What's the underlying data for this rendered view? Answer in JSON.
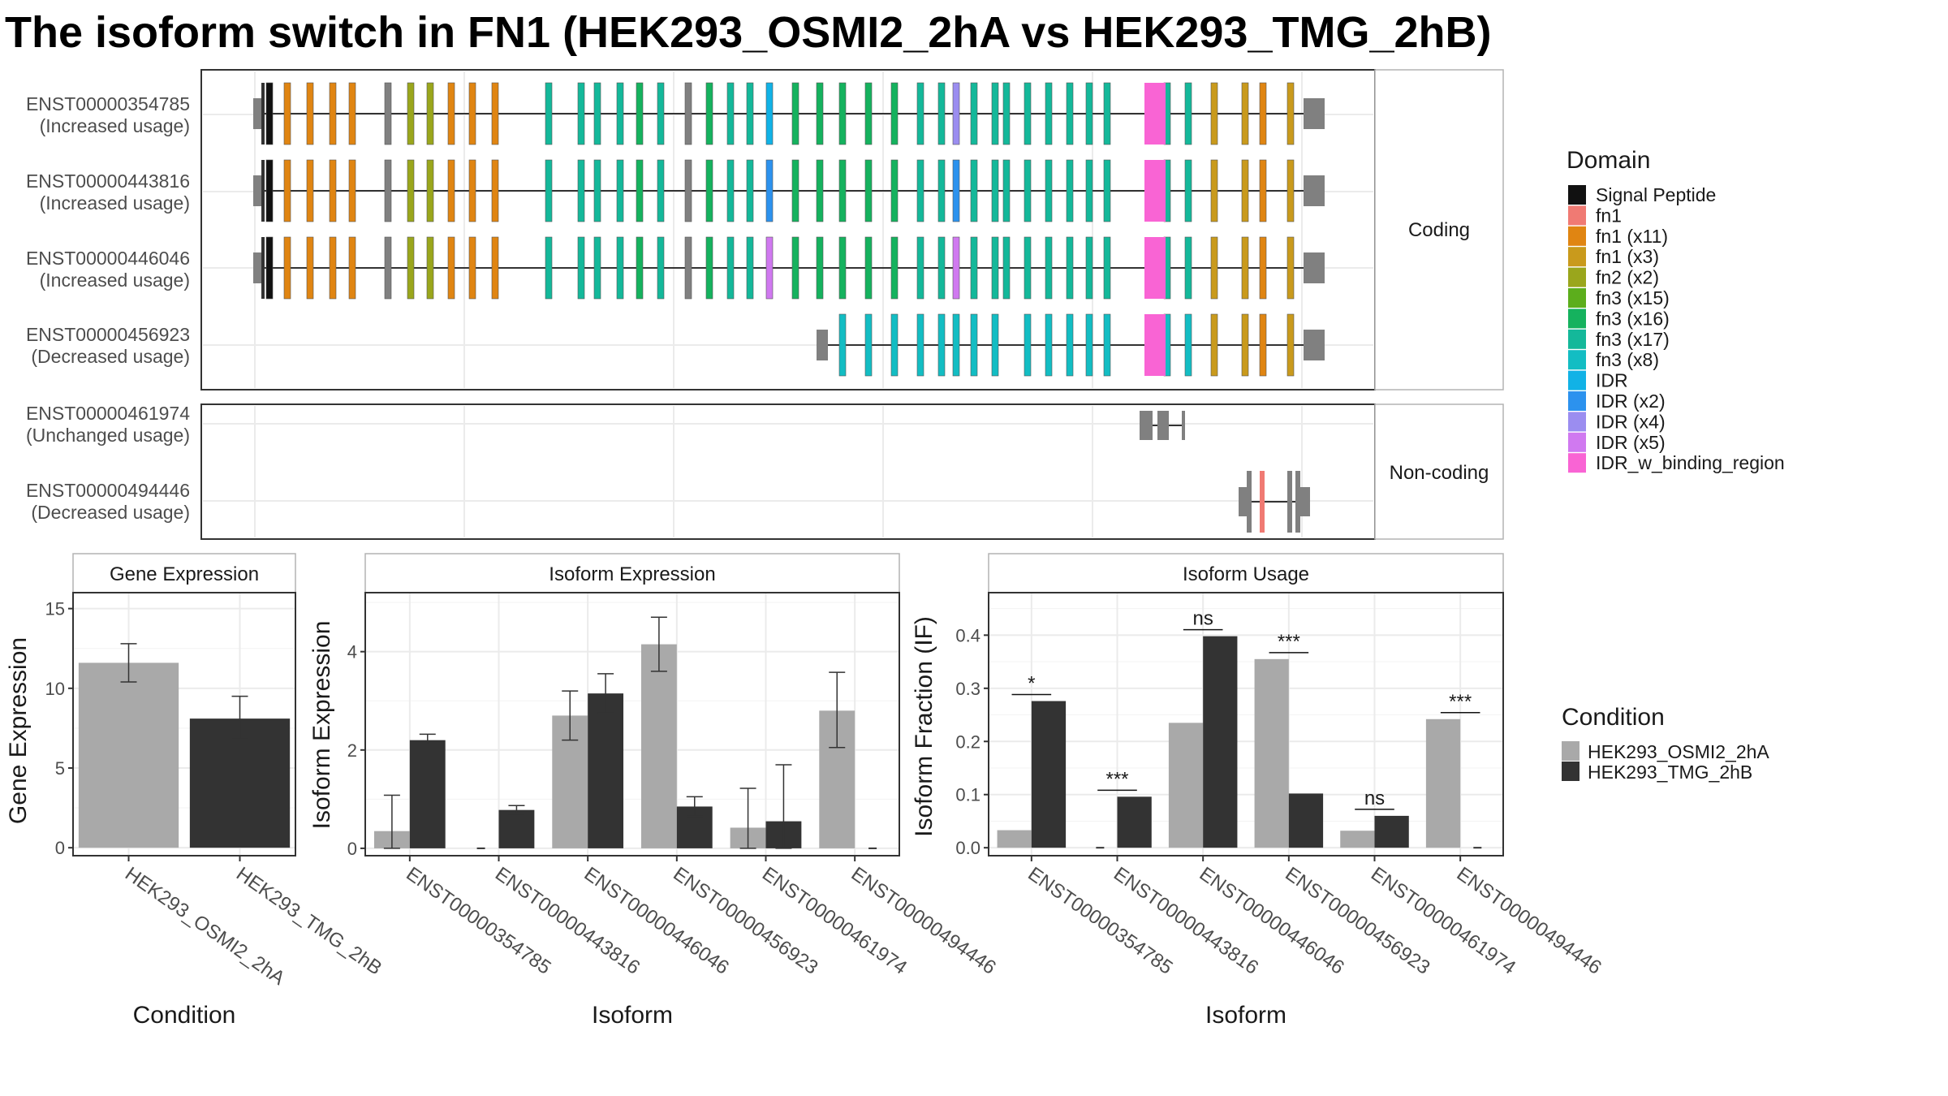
{
  "title": "The isoform switch in FN1 (HEK293_OSMI2_2hA vs HEK293_TMG_2hB)",
  "colors": {
    "condA": "#a9a9a9",
    "condB": "#333333",
    "unannotated": "#808080"
  },
  "domain_legend": {
    "title": "Domain",
    "items": [
      {
        "label": "Signal Peptide",
        "color": "#111111"
      },
      {
        "label": "fn1",
        "color": "#f07a73"
      },
      {
        "label": "fn1 (x11)",
        "color": "#e08512"
      },
      {
        "label": "fn1 (x3)",
        "color": "#c99a1c"
      },
      {
        "label": "fn2 (x2)",
        "color": "#9aa61c"
      },
      {
        "label": "fn3 (x15)",
        "color": "#5cae1c"
      },
      {
        "label": "fn3 (x16)",
        "color": "#15b25e"
      },
      {
        "label": "fn3 (x17)",
        "color": "#14b89a"
      },
      {
        "label": "fn3 (x8)",
        "color": "#13bdc3"
      },
      {
        "label": "IDR",
        "color": "#11b2e6"
      },
      {
        "label": "IDR (x2)",
        "color": "#2c92ee"
      },
      {
        "label": "IDR (x4)",
        "color": "#9b8df0"
      },
      {
        "label": "IDR (x5)",
        "color": "#d079f0"
      },
      {
        "label": "IDR_w_binding_region",
        "color": "#f964d4"
      }
    ]
  },
  "condition_legend": {
    "title": "Condition",
    "items": [
      "HEK293_OSMI2_2hA",
      "HEK293_TMG_2hB"
    ]
  },
  "structure": {
    "groups": [
      {
        "label": "Coding",
        "isoforms": [
          {
            "id": "ENST00000354785",
            "usage": "(Increased usage)"
          },
          {
            "id": "ENST00000443816",
            "usage": "(Increased usage)"
          },
          {
            "id": "ENST00000446046",
            "usage": "(Increased usage)"
          },
          {
            "id": "ENST00000456923",
            "usage": "(Decreased usage)"
          }
        ]
      },
      {
        "label": "Non-coding",
        "isoforms": [
          {
            "id": "ENST00000461974",
            "usage": "(Unchanged usage)"
          },
          {
            "id": "ENST00000494446",
            "usage": "(Decreased usage)"
          }
        ]
      }
    ]
  },
  "chart_data": [
    {
      "type": "bar",
      "panel": "Gene Expression",
      "categories": [
        "HEK293_OSMI2_2hA",
        "HEK293_TMG_2hB"
      ],
      "values": [
        11.6,
        8.1
      ],
      "error_low": [
        10.4,
        6.8
      ],
      "error_high": [
        12.8,
        9.5
      ],
      "xlabel": "Condition",
      "ylabel": "Gene Expression",
      "ylim": [
        -0.5,
        16
      ],
      "yticks": [
        0,
        5,
        10,
        15
      ],
      "grid": true
    },
    {
      "type": "bar",
      "panel": "Isoform Expression",
      "categories": [
        "ENST00000354785",
        "ENST00000443816",
        "ENST00000446046",
        "ENST00000456923",
        "ENST00000461974",
        "ENST00000494446"
      ],
      "series": [
        {
          "name": "HEK293_OSMI2_2hA",
          "values": [
            0.35,
            0.0,
            2.7,
            4.15,
            0.42,
            2.8
          ],
          "error_low": [
            0.0,
            0.0,
            2.2,
            3.6,
            0.0,
            2.05
          ],
          "error_high": [
            1.08,
            0.0,
            3.2,
            4.7,
            1.22,
            3.58
          ]
        },
        {
          "name": "HEK293_TMG_2hB",
          "values": [
            2.2,
            0.78,
            3.15,
            0.85,
            0.55,
            0.0
          ],
          "error_low": [
            2.1,
            0.7,
            2.75,
            0.65,
            0.0,
            0.0
          ],
          "error_high": [
            2.32,
            0.87,
            3.55,
            1.05,
            1.7,
            0.0
          ]
        }
      ],
      "xlabel": "Isoform",
      "ylabel": "Isoform Expression",
      "ylim": [
        -0.15,
        5.2
      ],
      "yticks": [
        0,
        2,
        4
      ],
      "grid": true
    },
    {
      "type": "bar",
      "panel": "Isoform Usage",
      "categories": [
        "ENST00000354785",
        "ENST00000443816",
        "ENST00000446046",
        "ENST00000456923",
        "ENST00000461974",
        "ENST00000494446"
      ],
      "series": [
        {
          "name": "HEK293_OSMI2_2hA",
          "values": [
            0.033,
            0.0,
            0.235,
            0.355,
            0.032,
            0.242
          ]
        },
        {
          "name": "HEK293_TMG_2hB",
          "values": [
            0.276,
            0.096,
            0.398,
            0.102,
            0.06,
            0.0
          ]
        }
      ],
      "significance": [
        "*",
        "***",
        "ns",
        "***",
        "ns",
        "***"
      ],
      "xlabel": "Isoform",
      "ylabel": "Isoform Fraction (IF)",
      "ylim": [
        -0.015,
        0.48
      ],
      "yticks": [
        0.0,
        0.1,
        0.2,
        0.3,
        0.4
      ],
      "ytick_labels": [
        "0.0",
        "0.1",
        "0.2",
        "0.3",
        "0.4"
      ],
      "grid": true
    }
  ]
}
